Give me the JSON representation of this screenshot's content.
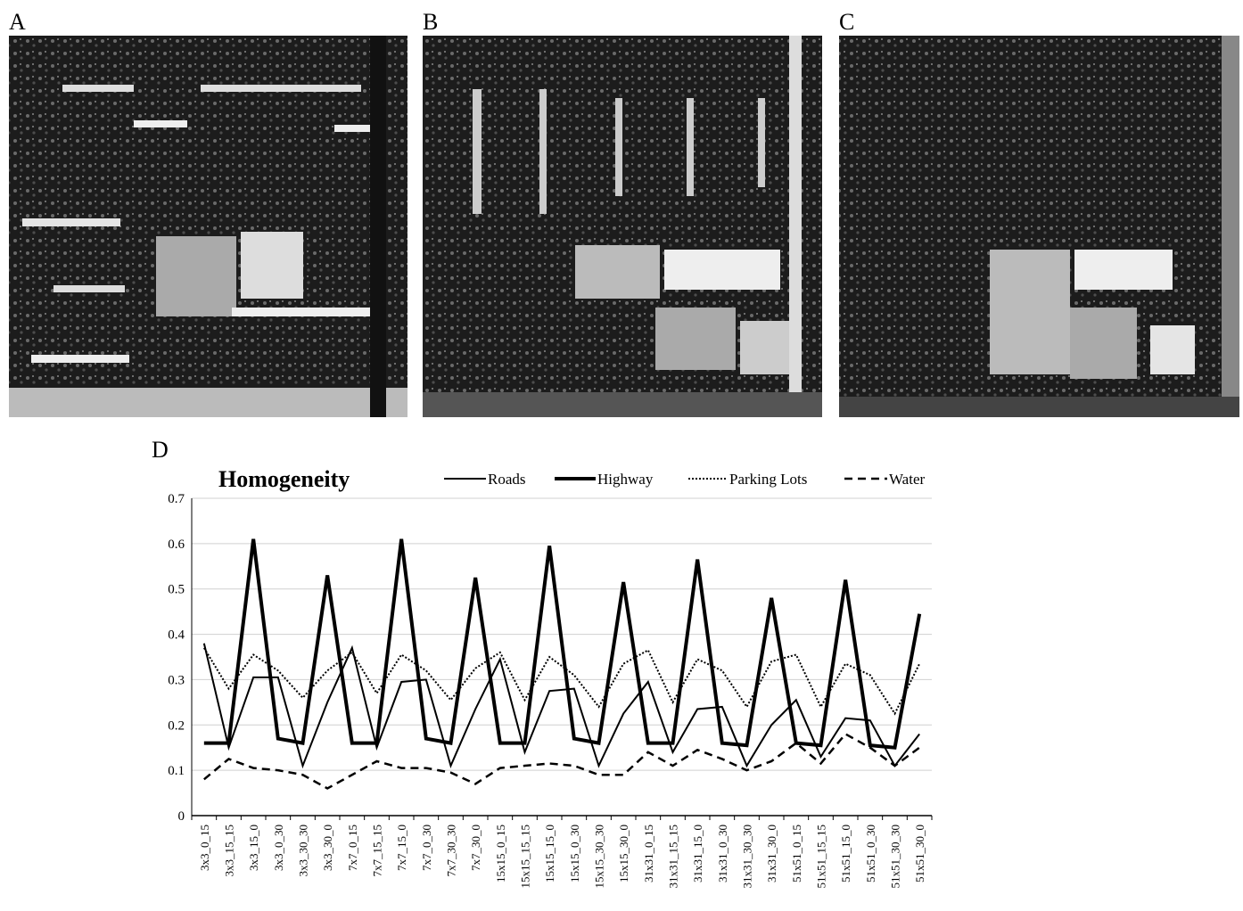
{
  "panels": [
    {
      "label": "A"
    },
    {
      "label": "B"
    },
    {
      "label": "C"
    }
  ],
  "chart_label": "D",
  "chart_data": {
    "type": "line",
    "title": "Homogeneity",
    "categories": [
      "3x3_0_15",
      "3x3_15_15",
      "3x3_15_0",
      "3x3_0_30",
      "3x3_30_30",
      "3x3_30_0",
      "7x7_0_15",
      "7x7_15_15",
      "7x7_15_0",
      "7x7_0_30",
      "7x7_30_30",
      "7x7_30_0",
      "15x15_0_15",
      "15x15_15_15",
      "15x15_15_0",
      "15x15_0_30",
      "15x15_30_30",
      "15x15_30_0",
      "31x31_0_15",
      "31x31_15_15",
      "31x31_15_0",
      "31x31_0_30",
      "31x31_30_30",
      "31x31_30_0",
      "51x51_0_15",
      "51x51_15_15",
      "51x51_15_0",
      "51x51_0_30",
      "51x51_30_30",
      "51x51_30_0"
    ],
    "series": [
      {
        "name": "Roads",
        "color": "#000000",
        "line_width": 2,
        "dash": "none",
        "values": [
          0.38,
          0.15,
          0.305,
          0.305,
          0.11,
          0.25,
          0.37,
          0.15,
          0.295,
          0.3,
          0.11,
          0.235,
          0.345,
          0.14,
          0.275,
          0.28,
          0.11,
          0.225,
          0.295,
          0.14,
          0.235,
          0.24,
          0.11,
          0.2,
          0.255,
          0.13,
          0.215,
          0.21,
          0.11,
          0.18
        ]
      },
      {
        "name": "Highway",
        "color": "#000000",
        "line_width": 4,
        "dash": "none",
        "values": [
          0.16,
          0.16,
          0.61,
          0.17,
          0.16,
          0.53,
          0.16,
          0.16,
          0.61,
          0.17,
          0.16,
          0.525,
          0.16,
          0.16,
          0.595,
          0.17,
          0.16,
          0.515,
          0.16,
          0.16,
          0.565,
          0.16,
          0.155,
          0.48,
          0.16,
          0.155,
          0.52,
          0.155,
          0.15,
          0.445
        ]
      },
      {
        "name": "Parking Lots",
        "color": "#000000",
        "line_width": 2,
        "dash": "2,2",
        "values": [
          0.37,
          0.28,
          0.355,
          0.32,
          0.26,
          0.32,
          0.36,
          0.27,
          0.355,
          0.32,
          0.255,
          0.325,
          0.36,
          0.255,
          0.35,
          0.31,
          0.24,
          0.335,
          0.365,
          0.25,
          0.345,
          0.32,
          0.24,
          0.34,
          0.355,
          0.24,
          0.335,
          0.31,
          0.225,
          0.335
        ]
      },
      {
        "name": "Water",
        "color": "#000000",
        "line_width": 2.5,
        "dash": "9,6",
        "values": [
          0.08,
          0.125,
          0.105,
          0.1,
          0.09,
          0.06,
          0.09,
          0.12,
          0.105,
          0.105,
          0.095,
          0.07,
          0.105,
          0.11,
          0.115,
          0.11,
          0.09,
          0.09,
          0.14,
          0.11,
          0.145,
          0.125,
          0.1,
          0.12,
          0.16,
          0.115,
          0.18,
          0.15,
          0.11,
          0.15
        ]
      }
    ],
    "ylim": [
      0,
      0.7
    ],
    "yticks": [
      0,
      0.1,
      0.2,
      0.3,
      0.4,
      0.5,
      0.6,
      0.7
    ],
    "grid": true
  }
}
